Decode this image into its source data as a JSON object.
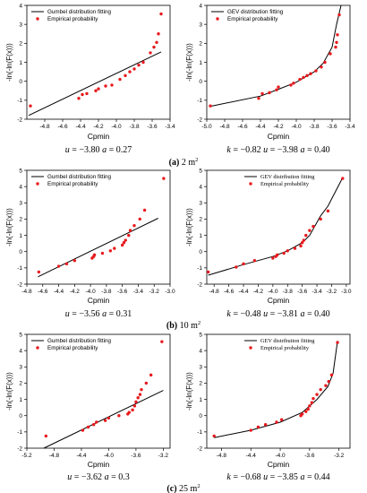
{
  "chart_data": [
    {
      "type": "scatter",
      "row": 0,
      "col": 0,
      "legend_font": "sans",
      "xlabel": "Cpmin",
      "ylabel": "-ln(-ln(F(x)))",
      "xlim": [
        -5.0,
        -3.4
      ],
      "ylim": [
        -2,
        4
      ],
      "xticks": [
        -4.8,
        -4.6,
        -4.4,
        -4.2,
        -4.0,
        -3.8,
        -3.6,
        -3.4
      ],
      "yticks": [
        -2,
        -1,
        0,
        1,
        2,
        3,
        4
      ],
      "xtick_labels": [
        "-4.8",
        "-4.6",
        "-4.4",
        "-4.2",
        "-4.0",
        "-3.8",
        "-3.6",
        "-3.4"
      ],
      "ytick_labels": [
        "-2",
        "-1",
        "0",
        "1",
        "2",
        "3",
        "4"
      ],
      "legend": {
        "position": "top-left",
        "fit_label": "Gumbel distribution fitting",
        "emp_label": "Empirical probability"
      },
      "fit": {
        "x": [
          -4.98,
          -3.5
        ],
        "y": [
          -1.8,
          1.55
        ]
      },
      "empirical": {
        "x": [
          -4.96,
          -4.42,
          -4.38,
          -4.33,
          -4.23,
          -4.2,
          -4.12,
          -4.05,
          -3.96,
          -3.9,
          -3.85,
          -3.8,
          -3.75,
          -3.7,
          -3.62,
          -3.58,
          -3.55,
          -3.53,
          -3.5
        ],
        "y": [
          -1.3,
          -0.9,
          -0.7,
          -0.65,
          -0.5,
          -0.4,
          -0.25,
          -0.2,
          0.1,
          0.3,
          0.5,
          0.65,
          0.85,
          1.0,
          1.5,
          1.8,
          2.05,
          2.5,
          3.55
        ]
      },
      "params": [
        {
          "s": "u",
          "v": " = −3.80 "
        },
        {
          "s": "a",
          "v": " = 0.27"
        }
      ]
    },
    {
      "type": "scatter",
      "row": 0,
      "col": 1,
      "legend_font": "sans",
      "xlabel": "Cpmin",
      "ylabel": "-ln(-ln(F(x)))",
      "xlim": [
        -5.0,
        -3.4
      ],
      "ylim": [
        -2,
        4
      ],
      "xticks": [
        -5.0,
        -4.8,
        -4.6,
        -4.4,
        -4.2,
        -4.0,
        -3.8,
        -3.6,
        -3.4
      ],
      "yticks": [
        -2,
        -1,
        0,
        1,
        2,
        3,
        4
      ],
      "xtick_labels": [
        "-5.0",
        "-4.8",
        "-4.6",
        "-4.4",
        "-4.2",
        "-4.0",
        "-3.8",
        "-3.6",
        "-3.4"
      ],
      "ytick_labels": [
        "-2",
        "-1",
        "0",
        "1",
        "2",
        "3",
        "4"
      ],
      "legend": {
        "position": "top-left",
        "fit_label": "GEV distribution fitting",
        "emp_label": "Empirical probability"
      },
      "fit": {
        "x": [
          -4.96,
          -4.4,
          -4.2,
          -4.0,
          -3.8,
          -3.7,
          -3.6,
          -3.55,
          -3.5
        ],
        "y": [
          -1.32,
          -0.78,
          -0.42,
          -0.05,
          0.5,
          0.95,
          1.8,
          3.0,
          4.0
        ]
      },
      "empirical": {
        "x": [
          -4.96,
          -4.42,
          -4.38,
          -4.3,
          -4.22,
          -4.2,
          -4.06,
          -4.03,
          -3.96,
          -3.92,
          -3.88,
          -3.84,
          -3.78,
          -3.72,
          -3.68,
          -3.62,
          -3.56,
          -3.55,
          -3.54,
          -3.52
        ],
        "y": [
          -1.3,
          -0.9,
          -0.65,
          -0.6,
          -0.45,
          -0.3,
          -0.2,
          -0.1,
          0.1,
          0.2,
          0.3,
          0.4,
          0.55,
          0.75,
          1.0,
          1.45,
          1.8,
          2.05,
          2.45,
          3.5
        ]
      },
      "params": [
        {
          "s": "k",
          "v": " = −0.82 "
        },
        {
          "s": "u",
          "v": " = −3.98 "
        },
        {
          "s": "a",
          "v": " = 0.40"
        }
      ]
    },
    {
      "type": "scatter",
      "row": 1,
      "col": 0,
      "legend_font": "sans",
      "xlabel": "Cpmin",
      "ylabel": "-ln(-ln(F(x)))",
      "xlim": [
        -4.8,
        -3.0
      ],
      "ylim": [
        -2,
        5
      ],
      "xticks": [
        -4.8,
        -4.6,
        -4.4,
        -4.2,
        -4.0,
        -3.8,
        -3.6,
        -3.4,
        -3.2,
        -3.0
      ],
      "yticks": [
        -2,
        -1,
        0,
        1,
        2,
        3,
        4,
        5
      ],
      "xtick_labels": [
        "-4.8",
        "-4.6",
        "-4.4",
        "-4.2",
        "-4.0",
        "-3.8",
        "-3.6",
        "-3.4",
        "-3.2",
        "-3.0"
      ],
      "ytick_labels": [
        "-2",
        "-1",
        "0",
        "1",
        "2",
        "3",
        "4",
        "5"
      ],
      "legend": {
        "position": "top-left",
        "fit_label": "Gumbel distribution fitting",
        "emp_label": "Empirical probability"
      },
      "fit": {
        "x": [
          -4.66,
          -3.15
        ],
        "y": [
          -1.55,
          2.05
        ]
      },
      "empirical": {
        "x": [
          -4.65,
          -4.4,
          -4.3,
          -4.2,
          -3.98,
          -3.96,
          -3.95,
          -3.85,
          -3.75,
          -3.7,
          -3.6,
          -3.58,
          -3.56,
          -3.52,
          -3.5,
          -3.45,
          -3.38,
          -3.32,
          -3.08
        ],
        "y": [
          -1.25,
          -0.9,
          -0.75,
          -0.55,
          -0.4,
          -0.3,
          -0.2,
          -0.1,
          0.05,
          0.2,
          0.4,
          0.55,
          0.7,
          1.0,
          1.3,
          1.6,
          2.0,
          2.55,
          4.5
        ]
      },
      "params": [
        {
          "s": "u",
          "v": " = −3.56 "
        },
        {
          "s": "a",
          "v": " = 0.31"
        }
      ]
    },
    {
      "type": "scatter",
      "row": 1,
      "col": 1,
      "legend_font": "serif",
      "xlabel": "Cpmin",
      "ylabel": "-ln(-ln(F(x)))",
      "xlim": [
        -4.9,
        -2.95
      ],
      "ylim": [
        -2,
        5
      ],
      "xticks": [
        -4.8,
        -4.6,
        -4.4,
        -4.2,
        -4.0,
        -3.8,
        -3.6,
        -3.4,
        -3.2,
        -3.0
      ],
      "yticks": [
        -2,
        -1,
        0,
        1,
        2,
        3,
        4,
        5
      ],
      "xtick_labels": [
        "-4.8",
        "-4.6",
        "-4.4",
        "-4.2",
        "-4.0",
        "-3.8",
        "-3.6",
        "-3.4",
        "-3.2",
        "-3.0"
      ],
      "ytick_labels": [
        "-2",
        "-1",
        "0",
        "1",
        "2",
        "3",
        "4",
        "5"
      ],
      "legend": {
        "position": "top-center",
        "fit_label": "GEV distribution fitting",
        "emp_label": "Empirical probability"
      },
      "fit": {
        "x": [
          -4.88,
          -4.4,
          -4.0,
          -3.8,
          -3.6,
          -3.5,
          -3.35,
          -3.25,
          -3.05
        ],
        "y": [
          -1.45,
          -0.8,
          -0.3,
          0.05,
          0.55,
          1.0,
          2.2,
          2.8,
          4.55
        ]
      },
      "empirical": {
        "x": [
          -4.88,
          -4.5,
          -4.4,
          -4.25,
          -4.0,
          -3.96,
          -3.94,
          -3.85,
          -3.8,
          -3.7,
          -3.62,
          -3.6,
          -3.58,
          -3.55,
          -3.5,
          -3.45,
          -3.35,
          -3.25,
          -3.05
        ],
        "y": [
          -1.25,
          -0.95,
          -0.75,
          -0.55,
          -0.4,
          -0.3,
          -0.2,
          -0.1,
          0.05,
          0.2,
          0.35,
          0.55,
          0.7,
          1.0,
          1.3,
          1.55,
          2.0,
          2.5,
          4.5
        ]
      },
      "params": [
        {
          "s": "k",
          "v": " = −0.48 "
        },
        {
          "s": "u",
          "v": " = −3.81 "
        },
        {
          "s": "a",
          "v": " = 0.40"
        }
      ]
    },
    {
      "type": "scatter",
      "row": 2,
      "col": 0,
      "legend_font": "sans",
      "xlabel": "Cpmin",
      "ylabel": "-ln(-ln(F(x)))",
      "xlim": [
        -5.2,
        -3.1
      ],
      "ylim": [
        -2,
        5
      ],
      "xticks": [
        -5.2,
        -4.8,
        -4.4,
        -4.0,
        -3.6,
        -3.2
      ],
      "yticks": [
        -2,
        -1,
        0,
        1,
        2,
        3,
        4,
        5
      ],
      "xtick_labels": [
        "-5.2",
        "-4.8",
        "-4.4",
        "-4.0",
        "-3.6",
        "-3.2"
      ],
      "ytick_labels": [
        "-2",
        "-1",
        "0",
        "1",
        "2",
        "3",
        "4",
        "5"
      ],
      "legend": {
        "position": "top-left",
        "fit_label": "Gumbel distribution fitting",
        "emp_label": "Empirical probability"
      },
      "fit": {
        "x": [
          -4.95,
          -3.2
        ],
        "y": [
          -2.0,
          1.55
        ]
      },
      "empirical": {
        "x": [
          -4.92,
          -4.38,
          -4.3,
          -4.22,
          -4.18,
          -4.05,
          -4.0,
          -3.85,
          -3.72,
          -3.7,
          -3.65,
          -3.62,
          -3.6,
          -3.57,
          -3.54,
          -3.52,
          -3.45,
          -3.38,
          -3.22
        ],
        "y": [
          -1.25,
          -0.9,
          -0.7,
          -0.55,
          -0.4,
          -0.3,
          -0.15,
          0.0,
          0.1,
          0.2,
          0.35,
          0.6,
          0.85,
          1.1,
          1.3,
          1.6,
          2.0,
          2.5,
          4.55
        ]
      },
      "params": [
        {
          "s": "u",
          "v": " = −3.62 "
        },
        {
          "s": "a",
          "v": " = 0.3"
        }
      ]
    },
    {
      "type": "scatter",
      "row": 2,
      "col": 1,
      "legend_font": "serif",
      "xlabel": "Cpmin",
      "ylabel": "-ln(-ln(F(x)))",
      "xlim": [
        -5.0,
        -3.05
      ],
      "ylim": [
        -2,
        5
      ],
      "xticks": [
        -4.8,
        -4.4,
        -4.0,
        -3.6,
        -3.2
      ],
      "yticks": [
        -2,
        -1,
        0,
        1,
        2,
        3,
        4,
        5
      ],
      "xtick_labels": [
        "-4.8",
        "-4.4",
        "-4.0",
        "-3.6",
        "-3.2"
      ],
      "ytick_labels": [
        "-2",
        "-1",
        "0",
        "1",
        "2",
        "3",
        "4",
        "5"
      ],
      "legend": {
        "position": "top-center",
        "fit_label": "GEV distribution fitting",
        "emp_label": "Empirical probability"
      },
      "fit": {
        "x": [
          -4.9,
          -4.4,
          -4.0,
          -3.7,
          -3.5,
          -3.35,
          -3.28,
          -3.22
        ],
        "y": [
          -1.35,
          -0.9,
          -0.4,
          0.2,
          1.0,
          1.8,
          2.6,
          4.6
        ]
      },
      "empirical": {
        "x": [
          -4.9,
          -4.4,
          -4.3,
          -4.2,
          -4.05,
          -3.98,
          -3.72,
          -3.7,
          -3.65,
          -3.62,
          -3.6,
          -3.57,
          -3.55,
          -3.5,
          -3.45,
          -3.38,
          -3.34,
          -3.3,
          -3.22
        ],
        "y": [
          -1.25,
          -0.9,
          -0.7,
          -0.55,
          -0.4,
          -0.25,
          0.0,
          0.1,
          0.25,
          0.4,
          0.6,
          0.8,
          1.05,
          1.3,
          1.6,
          1.85,
          2.1,
          2.5,
          4.5
        ]
      },
      "params": [
        {
          "s": "k",
          "v": " = −0.68 "
        },
        {
          "s": "u",
          "v": " = −3.85 "
        },
        {
          "s": "a",
          "v": " = 0.44"
        }
      ]
    }
  ],
  "row_captions": [
    {
      "label": "(a)",
      "text": " 2 m",
      "sup": "2"
    },
    {
      "label": "(b)",
      "text": " 10 m",
      "sup": "2"
    },
    {
      "label": "(c)",
      "text": " 25 m",
      "sup": "2"
    }
  ],
  "colors": {
    "fit_line": "#000000",
    "empirical": "#e8181c",
    "axis": "#000000"
  }
}
